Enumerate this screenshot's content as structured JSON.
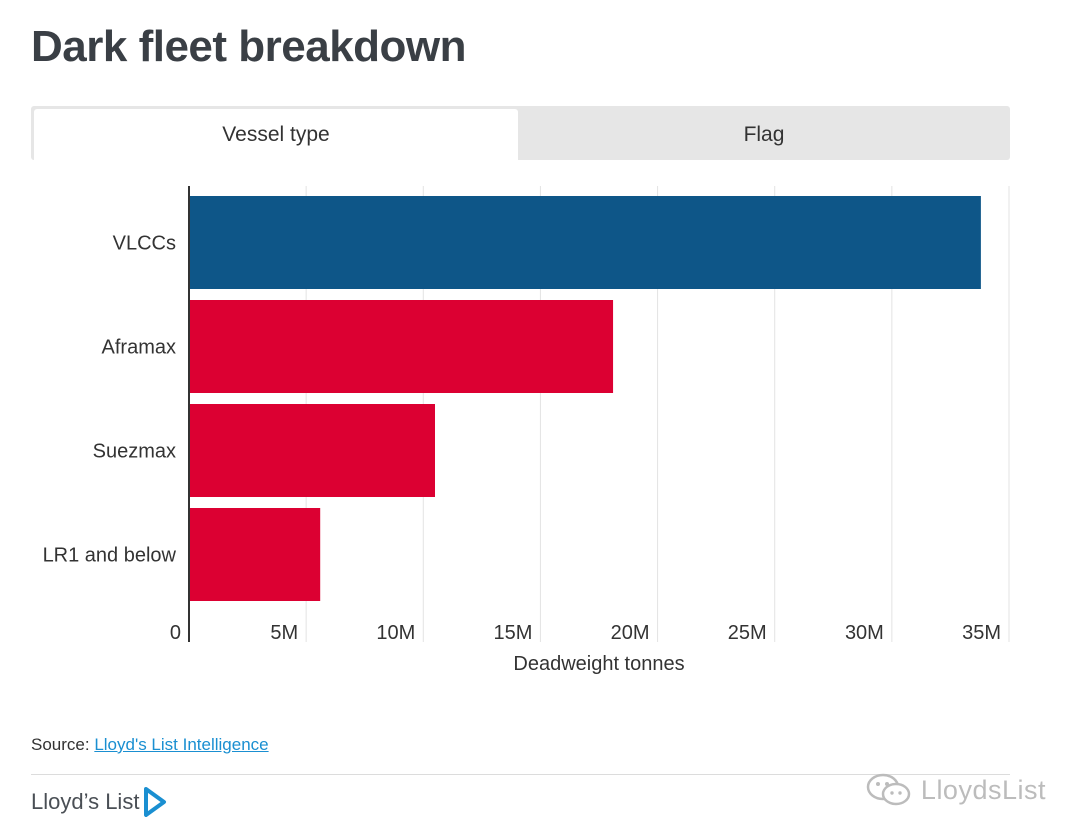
{
  "header": {
    "title": "Dark fleet breakdown"
  },
  "tabs": [
    {
      "label": "Vessel type",
      "active": true
    },
    {
      "label": "Flag",
      "active": false
    }
  ],
  "chart_data": {
    "type": "bar",
    "orientation": "horizontal",
    "categories": [
      "VLCCs",
      "Aframax",
      "Suezmax",
      "LR1 and below"
    ],
    "values": [
      33.8,
      18.1,
      10.5,
      5.6
    ],
    "colors": [
      "#0e5688",
      "#dc0032",
      "#dc0032",
      "#dc0032"
    ],
    "xlabel": "Deadweight tonnes",
    "xlim": [
      0,
      35
    ],
    "xticks": [
      {
        "value": 0,
        "label": "0"
      },
      {
        "value": 5,
        "label": "5M"
      },
      {
        "value": 10,
        "label": "10M"
      },
      {
        "value": 15,
        "label": "15M"
      },
      {
        "value": 20,
        "label": "20M"
      },
      {
        "value": 25,
        "label": "25M"
      },
      {
        "value": 30,
        "label": "30M"
      },
      {
        "value": 35,
        "label": "35M"
      }
    ],
    "grid": true
  },
  "source": {
    "prefix": "Source: ",
    "link_text": "Lloyd's List Intelligence"
  },
  "footer": {
    "brand": "Lloyd’s List",
    "brand_color": "#1a8fd1",
    "watermark": "LloydsList"
  }
}
